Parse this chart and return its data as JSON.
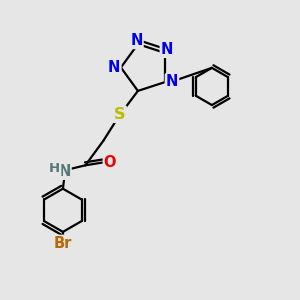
{
  "bg_color": "#e6e6e6",
  "bond_color": "#000000",
  "bond_lw": 1.6,
  "atom_colors": {
    "N": "#0000ee",
    "O": "#ee0000",
    "S": "#bbbb00",
    "Br": "#bb6600",
    "H": "#557777",
    "NH": "#557777"
  },
  "font_size": 10.5,
  "xlim": [
    0,
    10
  ],
  "ylim": [
    0,
    10
  ]
}
